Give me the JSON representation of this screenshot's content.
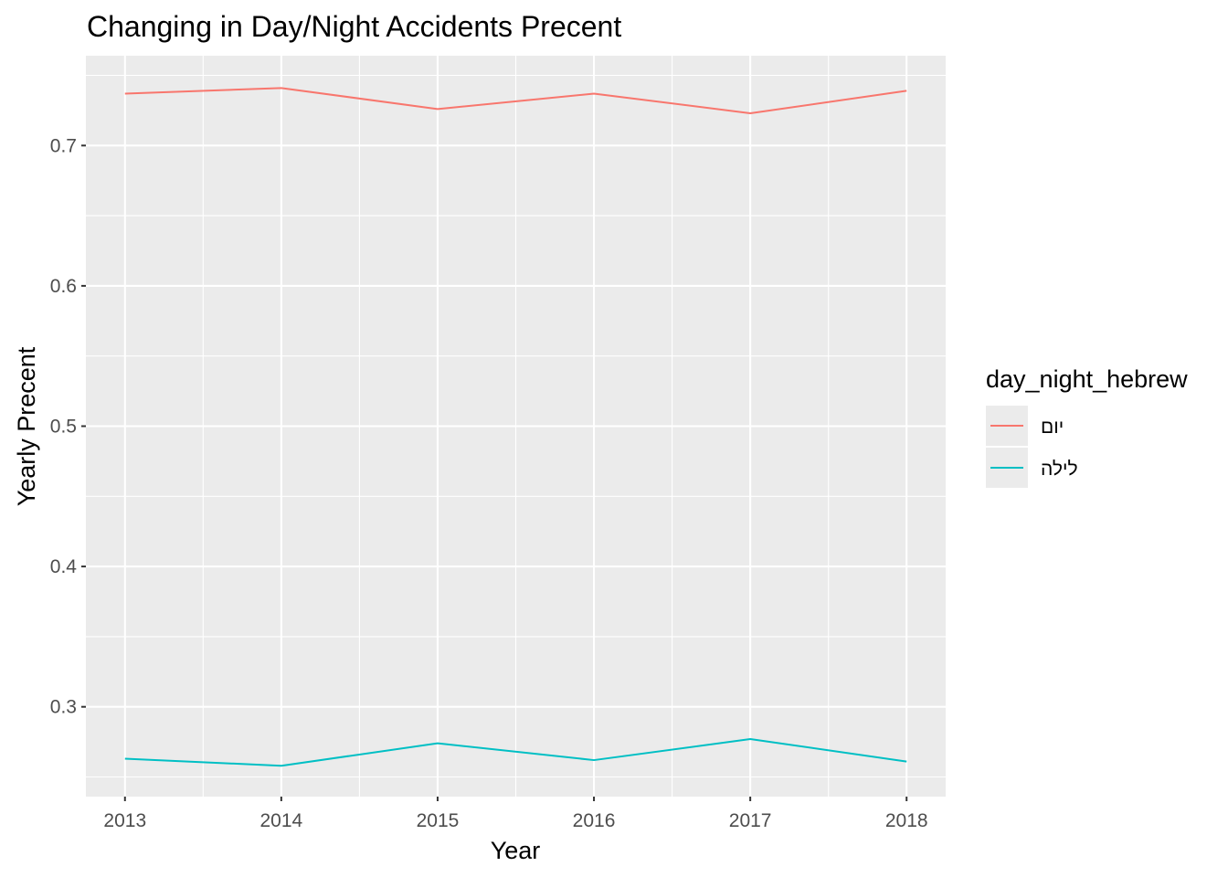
{
  "chart_data": {
    "type": "line",
    "title": "Changing in Day/Night Accidents Precent",
    "xlabel": "Year",
    "ylabel": "Yearly Precent",
    "x": [
      2013,
      2014,
      2015,
      2016,
      2017,
      2018
    ],
    "x_ticks": [
      "2013",
      "2014",
      "2015",
      "2016",
      "2017",
      "2018"
    ],
    "y_ticks": [
      "0.3",
      "0.4",
      "0.5",
      "0.6",
      "0.7"
    ],
    "y_tick_values": [
      0.3,
      0.4,
      0.5,
      0.6,
      0.7
    ],
    "xlim": [
      2012.75,
      2018.25
    ],
    "ylim": [
      0.236,
      0.764
    ],
    "grid": true,
    "legend": {
      "title": "day_night_hebrew",
      "placement": "right"
    },
    "series": [
      {
        "name": "יום",
        "color": "#F8766D",
        "values": [
          0.737,
          0.741,
          0.726,
          0.737,
          0.723,
          0.739
        ]
      },
      {
        "name": "לילה",
        "color": "#00BFC4",
        "values": [
          0.263,
          0.258,
          0.274,
          0.262,
          0.277,
          0.261
        ]
      }
    ],
    "panel_background": "#EBEBEB",
    "grid_color": "#FFFFFF"
  }
}
